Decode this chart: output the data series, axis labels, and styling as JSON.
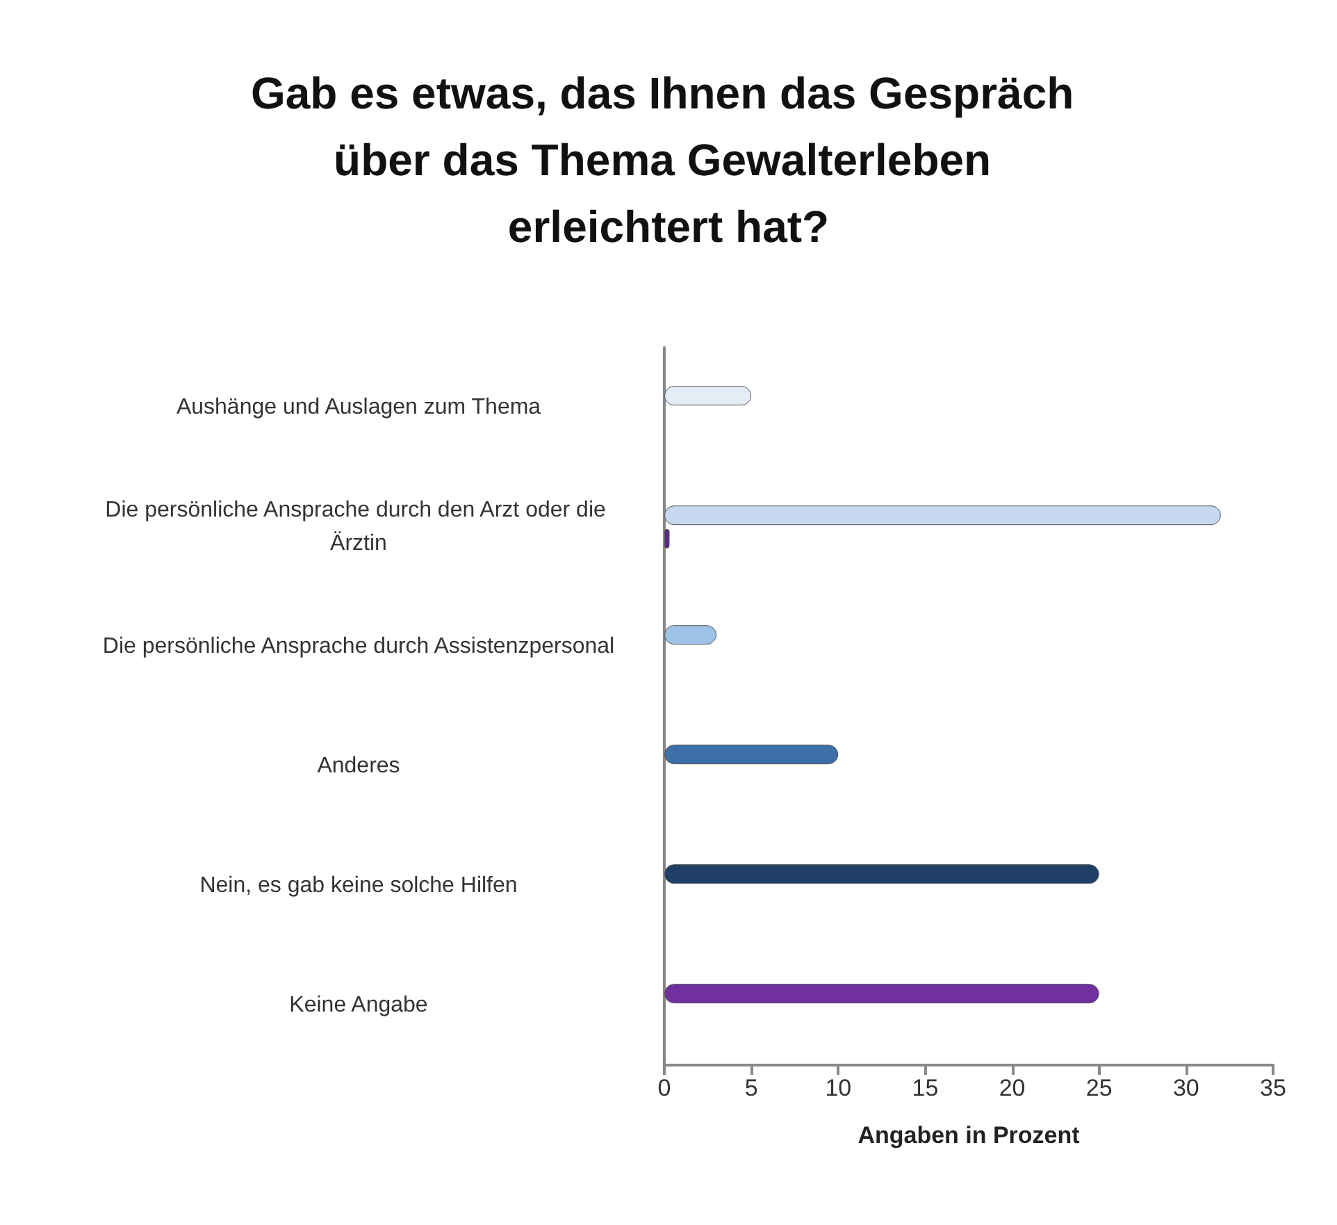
{
  "chart_data": {
    "type": "bar",
    "orientation": "horizontal",
    "title": "Gab es etwas, das Ihnen das Gespräch über das Thema Gewalterleben erleichtert hat?",
    "xlabel": "Angaben in Prozent",
    "categories": [
      "Aushänge und Auslagen zum Thema",
      "Die persönliche Ansprache durch den Arzt oder die Ärztin",
      "Die persönliche Ansprache durch Assistenzpersonal",
      "Anderes",
      "Nein, es gab keine solche Hilfen",
      "Keine Angabe"
    ],
    "series": [
      {
        "colors": [
          "#e4ecf5",
          "#c6d9f1",
          "#9dc3e6",
          "#3d6fa8",
          "#1f3f66",
          "#7030a0"
        ],
        "values": [
          5,
          32,
          3,
          10,
          25,
          25
        ]
      },
      {
        "color": "#5b2a86",
        "values": [
          null,
          0.3,
          null,
          null,
          null,
          null
        ]
      }
    ],
    "xlim": [
      0,
      35
    ],
    "xticks": [
      0,
      5,
      10,
      15,
      20,
      25,
      30,
      35
    ],
    "grid": false
  }
}
